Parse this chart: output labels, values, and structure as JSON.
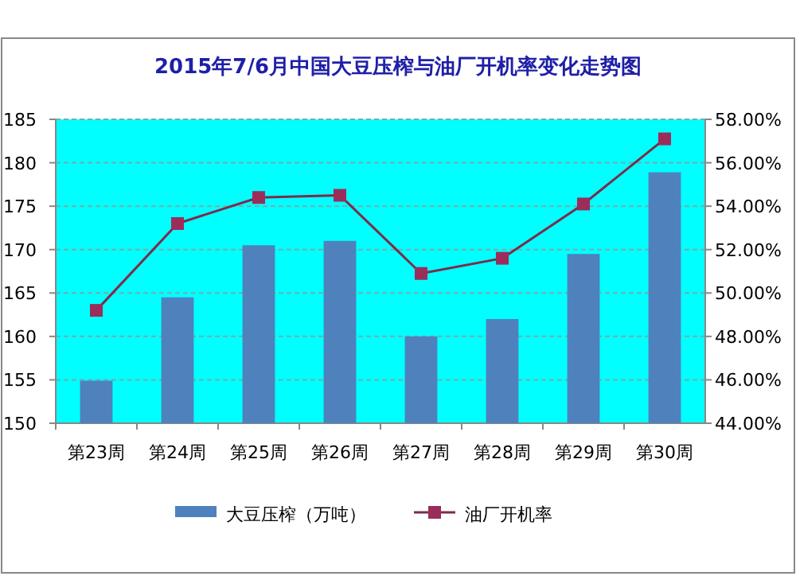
{
  "chart_data": {
    "type": "bar",
    "title": "2015年7/6月中国大豆压榨与油厂开机率变化走势图",
    "categories": [
      "第23周",
      "第24周",
      "第25周",
      "第26周",
      "第27周",
      "第28周",
      "第29周",
      "第30周"
    ],
    "series": [
      {
        "name": "大豆压榨（万吨）",
        "color": "#4f81bd",
        "values": [
          154.9,
          164.5,
          170.5,
          171,
          160,
          162,
          169.5,
          178.9
        ]
      },
      {
        "name": "油厂开机率",
        "type": "line",
        "axis": "y2",
        "color": "#7b2c4a",
        "marker": "square",
        "values": [
          49.2,
          53.2,
          54.4,
          54.5,
          50.9,
          51.6,
          54.1,
          57.1
        ]
      }
    ],
    "ylim": [
      150,
      185
    ],
    "yticks": [
      150,
      155,
      160,
      165,
      170,
      175,
      180,
      185
    ],
    "y2lim": [
      44,
      58
    ],
    "y2ticks": [
      {
        "value": 44,
        "label": "44.00%"
      },
      {
        "value": 46,
        "label": "46.00%"
      },
      {
        "value": 48,
        "label": "48.00%"
      },
      {
        "value": 50,
        "label": "50.00%"
      },
      {
        "value": 52,
        "label": "52.00%"
      },
      {
        "value": 54,
        "label": "54.00%"
      },
      {
        "value": 56,
        "label": "56.00%"
      },
      {
        "value": 58,
        "label": "58.00%"
      }
    ],
    "grid": "y",
    "legend": "bottom"
  }
}
